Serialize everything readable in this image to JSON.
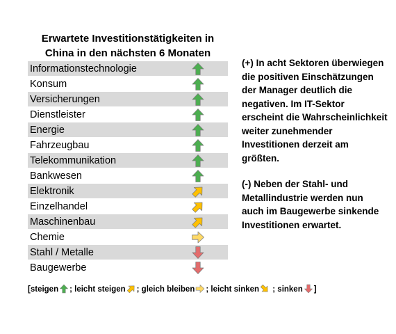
{
  "chart_data": {
    "type": "table",
    "title": "Erwartete Investitionstätigkeiten in China in den nächsten 6 Monaten",
    "rows": [
      {
        "sector": "Informationstechnologie",
        "trend": "steigen"
      },
      {
        "sector": "Konsum",
        "trend": "steigen"
      },
      {
        "sector": "Versicherungen",
        "trend": "steigen"
      },
      {
        "sector": "Dienstleister",
        "trend": "steigen"
      },
      {
        "sector": "Energie",
        "trend": "steigen"
      },
      {
        "sector": "Fahrzeugbau",
        "trend": "steigen"
      },
      {
        "sector": "Telekommunikation",
        "trend": "steigen"
      },
      {
        "sector": "Bankwesen",
        "trend": "steigen"
      },
      {
        "sector": "Elektronik",
        "trend": "leicht steigen"
      },
      {
        "sector": "Einzelhandel",
        "trend": "leicht steigen"
      },
      {
        "sector": "Maschinenbau",
        "trend": "leicht steigen"
      },
      {
        "sector": "Chemie",
        "trend": "gleich bleiben"
      },
      {
        "sector": "Stahl / Metalle",
        "trend": "sinken"
      },
      {
        "sector": "Baugewerbe",
        "trend": "sinken"
      }
    ]
  },
  "commentary": {
    "positive": "(+) In acht Sektoren überwiegen die positiven Einschätzungen der Manager deutlich die negativen. Im IT-Sektor erscheint die Wahrscheinlichkeit weiter zunehmender Investitionen derzeit am größten.",
    "negative": "(-) Neben der Stahl- und Metallindustrie werden nun auch im Baugewerbe sinkende Investitionen erwartet."
  },
  "legend": {
    "open": "[",
    "close": "]",
    "items": [
      {
        "label": "steigen",
        "trend": "steigen",
        "sep": "; "
      },
      {
        "label": "leicht steigen",
        "trend": "leicht steigen",
        "sep": "; "
      },
      {
        "label": "gleich bleiben",
        "trend": "gleich bleiben",
        "sep": "; "
      },
      {
        "label": "leicht sinken",
        "trend": "leicht sinken",
        "sep": " ; "
      },
      {
        "label": "sinken",
        "trend": "sinken",
        "sep": ""
      }
    ]
  },
  "colors": {
    "steigen": "#4caf50",
    "leicht steigen": "#ffc000",
    "gleich bleiben": "#ffd966",
    "leicht sinken": "#ffc000",
    "sinken": "#e46c6c",
    "row_shade": "#d9d9d9"
  }
}
